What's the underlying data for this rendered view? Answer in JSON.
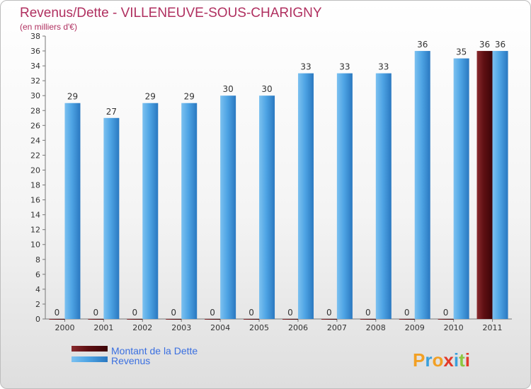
{
  "chart_data": {
    "type": "bar",
    "title": "Revenus/Dette - VILLENEUVE-SOUS-CHARIGNY",
    "subtitle": "(en milliers d'€)",
    "categories": [
      "2000",
      "2001",
      "2002",
      "2003",
      "2004",
      "2005",
      "2006",
      "2007",
      "2008",
      "2009",
      "2010",
      "2011"
    ],
    "series": [
      {
        "name": "Montant de la Dette",
        "color": "#5e0f12",
        "values": [
          0,
          0,
          0,
          0,
          0,
          0,
          0,
          0,
          0,
          0,
          0,
          36
        ]
      },
      {
        "name": "Revenus",
        "color": "#4ea4e4",
        "values": [
          29,
          27,
          29,
          29,
          30,
          30,
          33,
          33,
          33,
          36,
          35,
          36
        ]
      }
    ],
    "ylim": [
      0,
      38
    ],
    "yticks": [
      0,
      2,
      4,
      6,
      8,
      10,
      12,
      14,
      16,
      18,
      20,
      22,
      24,
      26,
      28,
      30,
      32,
      34,
      36,
      38
    ],
    "grid": false,
    "legend": "bottom-left"
  },
  "brand": {
    "letters": [
      "P",
      "r",
      "o",
      "x",
      "i",
      "t",
      "i"
    ],
    "colors": [
      "#f2a024",
      "#3aa0dc",
      "#f2a024",
      "#e23a2a",
      "#3aa0dc",
      "#8cc63f",
      "#e23a2a"
    ]
  }
}
